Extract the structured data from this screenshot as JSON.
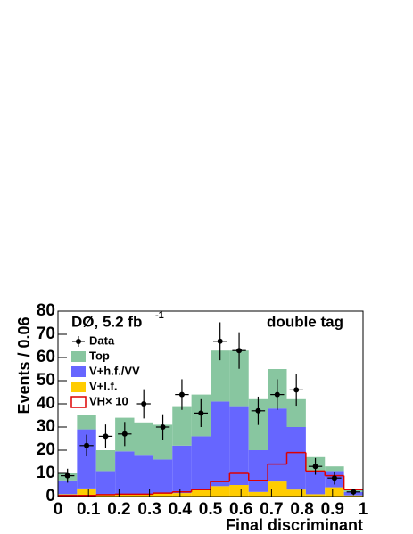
{
  "chart_data": {
    "type": "stacked_histogram",
    "title": "DØ, 5.2 fb",
    "title_superscript": "-1",
    "annotation": "double tag",
    "x_label": "Final discriminant",
    "y_label": "Events / 0.06",
    "bins": [
      0,
      0.0625,
      0.125,
      0.1875,
      0.25,
      0.3125,
      0.375,
      0.4375,
      0.5,
      0.5625,
      0.625,
      0.6875,
      0.75,
      0.8125,
      0.875,
      0.9375,
      1
    ],
    "series": [
      {
        "name": "V+l.f.",
        "color": "#ffcc00",
        "values": [
          1,
          3.5,
          1,
          1,
          1,
          1.5,
          1.5,
          3,
          4.5,
          5,
          2,
          6.5,
          3,
          1,
          4,
          0.5
        ]
      },
      {
        "name": "V+h.f./VV",
        "color": "#6666ff",
        "values": [
          6,
          25.5,
          10,
          18.5,
          17,
          14.5,
          20.5,
          23,
          36.5,
          34,
          18,
          31.5,
          27,
          10,
          7,
          1.5
        ]
      },
      {
        "name": "Top",
        "color": "#88c6a0",
        "values": [
          3,
          6,
          9,
          14.5,
          14,
          15,
          17,
          18,
          22,
          24,
          22,
          17,
          12,
          6,
          2,
          1
        ]
      }
    ],
    "signal": {
      "name": "VH× 10",
      "color": "#dd0000",
      "values": [
        0.5,
        0.5,
        0.8,
        1,
        1,
        1.5,
        2,
        3,
        6.5,
        10,
        7,
        14,
        19,
        11,
        9,
        3
      ]
    },
    "data": {
      "name": "Data",
      "color": "#000000",
      "values": [
        9,
        22,
        26,
        27,
        40,
        30,
        44,
        36,
        67,
        63,
        37,
        44,
        46,
        13,
        8,
        2
      ],
      "errors": [
        3,
        4.7,
        5.1,
        5.2,
        6.3,
        5.5,
        6.6,
        6,
        8.2,
        7.9,
        6.1,
        6.6,
        6.8,
        3.6,
        2.8,
        1.4
      ]
    },
    "xlim": [
      0,
      1
    ],
    "ylim": [
      0,
      80
    ],
    "xticks": [
      0,
      0.1,
      0.2,
      0.3,
      0.4,
      0.5,
      0.6,
      0.7,
      0.8,
      0.9,
      1
    ],
    "yticks": [
      0,
      10,
      20,
      30,
      40,
      50,
      60,
      70,
      80
    ]
  }
}
